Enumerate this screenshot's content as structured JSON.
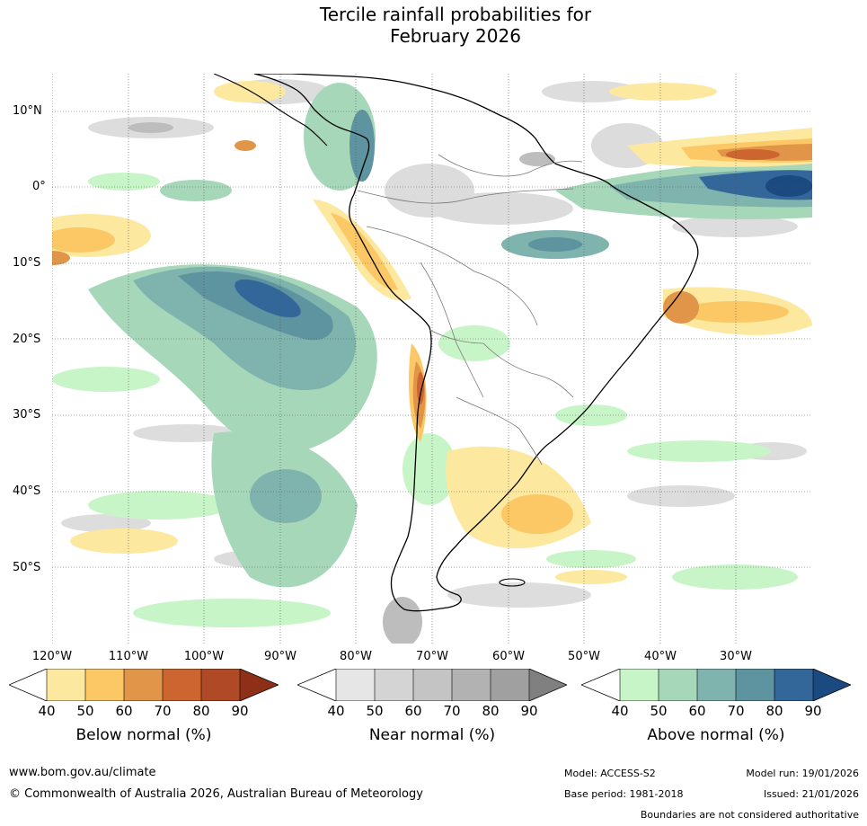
{
  "title_line1": "Tercile rainfall probabilities for",
  "title_line2": "February 2026",
  "lat_labels": [
    "10°N",
    "0°",
    "10°S",
    "20°S",
    "30°S",
    "40°S",
    "50°S"
  ],
  "lon_labels": [
    "120°W",
    "110°W",
    "100°W",
    "90°W",
    "80°W",
    "70°W",
    "60°W",
    "50°W",
    "40°W",
    "30°W"
  ],
  "colorbars": {
    "below": {
      "label": "Below normal (%)",
      "ticks": [
        "40",
        "50",
        "60",
        "70",
        "80",
        "90"
      ],
      "colors": [
        "#ffffff",
        "#fde8a0",
        "#fcc865",
        "#e09548",
        "#cc6530",
        "#b04a26",
        "#8e3018"
      ]
    },
    "near": {
      "label": "Near normal (%)",
      "ticks": [
        "40",
        "50",
        "60",
        "70",
        "80",
        "90"
      ],
      "colors": [
        "#ffffff",
        "#e6e6e6",
        "#d4d4d4",
        "#c4c4c4",
        "#b2b2b2",
        "#a0a0a0",
        "#808080"
      ]
    },
    "above": {
      "label": "Above normal (%)",
      "ticks": [
        "40",
        "50",
        "60",
        "70",
        "80",
        "90"
      ],
      "colors": [
        "#ffffff",
        "#c8f5c8",
        "#a6d7b9",
        "#7fb3ae",
        "#5e93a0",
        "#336699",
        "#1a4a80"
      ]
    }
  },
  "footer": {
    "website": "www.bom.gov.au/climate",
    "copyright": "© Commonwealth of Australia 2026, Australian Bureau of Meteorology",
    "model": "Model: ACCESS-S2",
    "base_period": "Base period: 1981-2018",
    "model_run": "Model run: 19/01/2026",
    "issued": "Issued: 21/01/2026",
    "disclaimer": "Boundaries are not considered authoritative"
  }
}
